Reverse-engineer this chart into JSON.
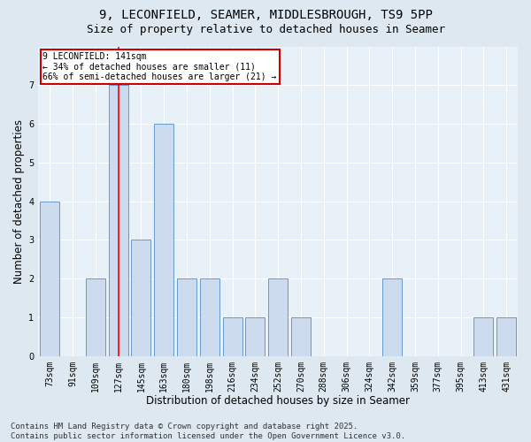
{
  "title_line1": "9, LECONFIELD, SEAMER, MIDDLESBROUGH, TS9 5PP",
  "title_line2": "Size of property relative to detached houses in Seamer",
  "xlabel": "Distribution of detached houses by size in Seamer",
  "ylabel": "Number of detached properties",
  "footer_line1": "Contains HM Land Registry data © Crown copyright and database right 2025.",
  "footer_line2": "Contains public sector information licensed under the Open Government Licence v3.0.",
  "categories": [
    "73sqm",
    "91sqm",
    "109sqm",
    "127sqm",
    "145sqm",
    "163sqm",
    "180sqm",
    "198sqm",
    "216sqm",
    "234sqm",
    "252sqm",
    "270sqm",
    "288sqm",
    "306sqm",
    "324sqm",
    "342sqm",
    "359sqm",
    "377sqm",
    "395sqm",
    "413sqm",
    "431sqm"
  ],
  "values": [
    4,
    0,
    2,
    7,
    3,
    6,
    2,
    2,
    1,
    1,
    2,
    1,
    0,
    0,
    0,
    2,
    0,
    0,
    0,
    1,
    1
  ],
  "bar_color": "#ccdcee",
  "bar_edge_color": "#6699cc",
  "red_line_x": 3,
  "annotation_text": "9 LECONFIELD: 141sqm\n← 34% of detached houses are smaller (11)\n66% of semi-detached houses are larger (21) →",
  "annotation_box_color": "#ffffff",
  "annotation_box_edge": "#cc0000",
  "ylim": [
    0,
    8
  ],
  "yticks": [
    0,
    1,
    2,
    3,
    4,
    5,
    6,
    7,
    8
  ],
  "background_color": "#dde8f0",
  "plot_bg_color": "#e8f0f8",
  "grid_color": "#ffffff",
  "title_fontsize": 10,
  "subtitle_fontsize": 9,
  "axis_label_fontsize": 8.5,
  "tick_fontsize": 7,
  "footer_fontsize": 6.5
}
